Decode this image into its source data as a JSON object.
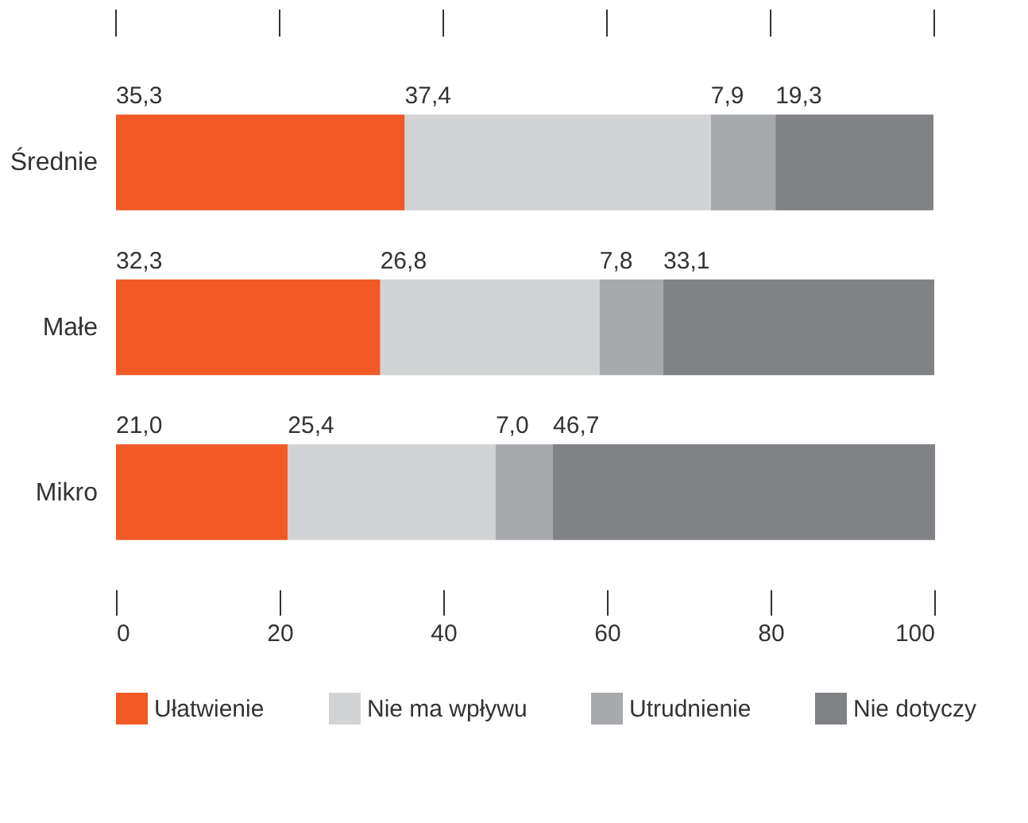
{
  "chart_data": {
    "type": "bar",
    "orientation": "horizontal",
    "stacked": true,
    "categories": [
      "Średnie",
      "Małe",
      "Mikro"
    ],
    "series": [
      {
        "name": "Ułatwienie",
        "color": "#f15a24",
        "values": [
          35.3,
          32.3,
          21.0
        ],
        "value_labels": [
          "35,3",
          "32,3",
          "21,0"
        ]
      },
      {
        "name": "Nie ma wpływu",
        "color": "#d1d3d4",
        "values": [
          37.4,
          26.8,
          25.4
        ],
        "value_labels": [
          "37,4",
          "26,8",
          "25,4"
        ]
      },
      {
        "name": "Utrudnienie",
        "color": "#a7a9ac",
        "values": [
          7.9,
          7.8,
          7.0
        ],
        "value_labels": [
          "7,9",
          "7,8",
          "7,0"
        ]
      },
      {
        "name": "Nie dotyczy",
        "color": "#808285",
        "values": [
          19.3,
          33.1,
          46.7
        ],
        "value_labels": [
          "19,3",
          "33,1",
          "46,7"
        ]
      }
    ],
    "xlim": [
      0,
      100
    ],
    "xticks": [
      0,
      20,
      40,
      60,
      80,
      100
    ],
    "grid": false,
    "legend": "bottom"
  }
}
